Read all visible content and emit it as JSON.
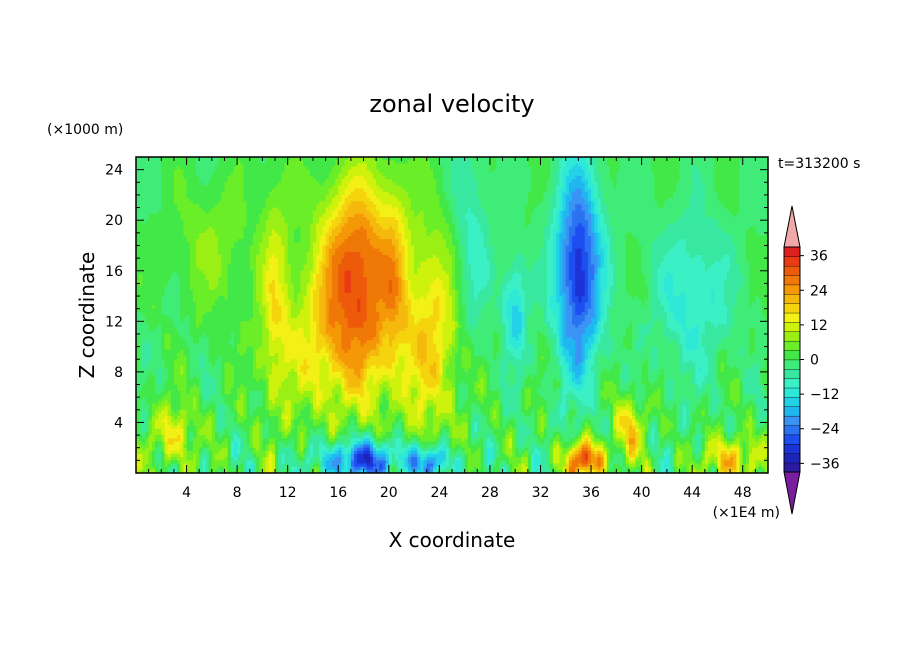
{
  "chart_data": {
    "type": "heatmap",
    "title": "zonal velocity",
    "xlabel": "X coordinate",
    "ylabel": "Z coordinate",
    "x_unit": "(×1E4 m)",
    "y_unit": "(×1000 m)",
    "time_label": "t=313200 s",
    "xlim": [
      0,
      50
    ],
    "ylim": [
      0,
      25
    ],
    "x_ticks": [
      4,
      8,
      12,
      16,
      20,
      24,
      28,
      32,
      36,
      40,
      44,
      48
    ],
    "y_ticks": [
      4,
      8,
      12,
      16,
      20,
      24
    ],
    "colorbar": {
      "label_values": [
        36,
        24,
        12,
        0,
        -12,
        -24,
        -36
      ],
      "levels": [
        -42,
        -39,
        -36,
        -33,
        -30,
        -27,
        -24,
        -21,
        -18,
        -15,
        -12,
        -9,
        -6,
        -3,
        0,
        3,
        6,
        9,
        12,
        15,
        18,
        21,
        24,
        27,
        30,
        33,
        36,
        39,
        42
      ],
      "colors": [
        "#7a1d9e",
        "#2d1aa0",
        "#1c25b8",
        "#1c33d6",
        "#1c4ef0",
        "#2a72f2",
        "#3a93f5",
        "#20b6f0",
        "#24d2e8",
        "#2ee8d8",
        "#3af0c4",
        "#38e8a0",
        "#40ec78",
        "#42e848",
        "#6aee28",
        "#9af014",
        "#cef20c",
        "#f2f014",
        "#f5d40e",
        "#f5b80c",
        "#f59808",
        "#f07806",
        "#ec5a0a",
        "#e83a14",
        "#e0201e",
        "#f0a8a8"
      ]
    },
    "features": [
      {
        "x": 17.5,
        "z": 17,
        "value": 24,
        "desc": "upper positive jet"
      },
      {
        "x": 23.5,
        "z": 10,
        "value": 12,
        "desc": "positive column"
      },
      {
        "x": 35,
        "z": 17,
        "value": -24,
        "desc": "upper negative jet"
      },
      {
        "x": 30,
        "z": 13,
        "value": -18,
        "desc": "negative core"
      },
      {
        "x": 18,
        "z": 1,
        "value": -30,
        "desc": "surface negative"
      },
      {
        "x": 23.5,
        "z": 1,
        "value": -27,
        "desc": "surface negative"
      },
      {
        "x": 35.5,
        "z": 1,
        "value": 27,
        "desc": "surface positive"
      }
    ]
  }
}
